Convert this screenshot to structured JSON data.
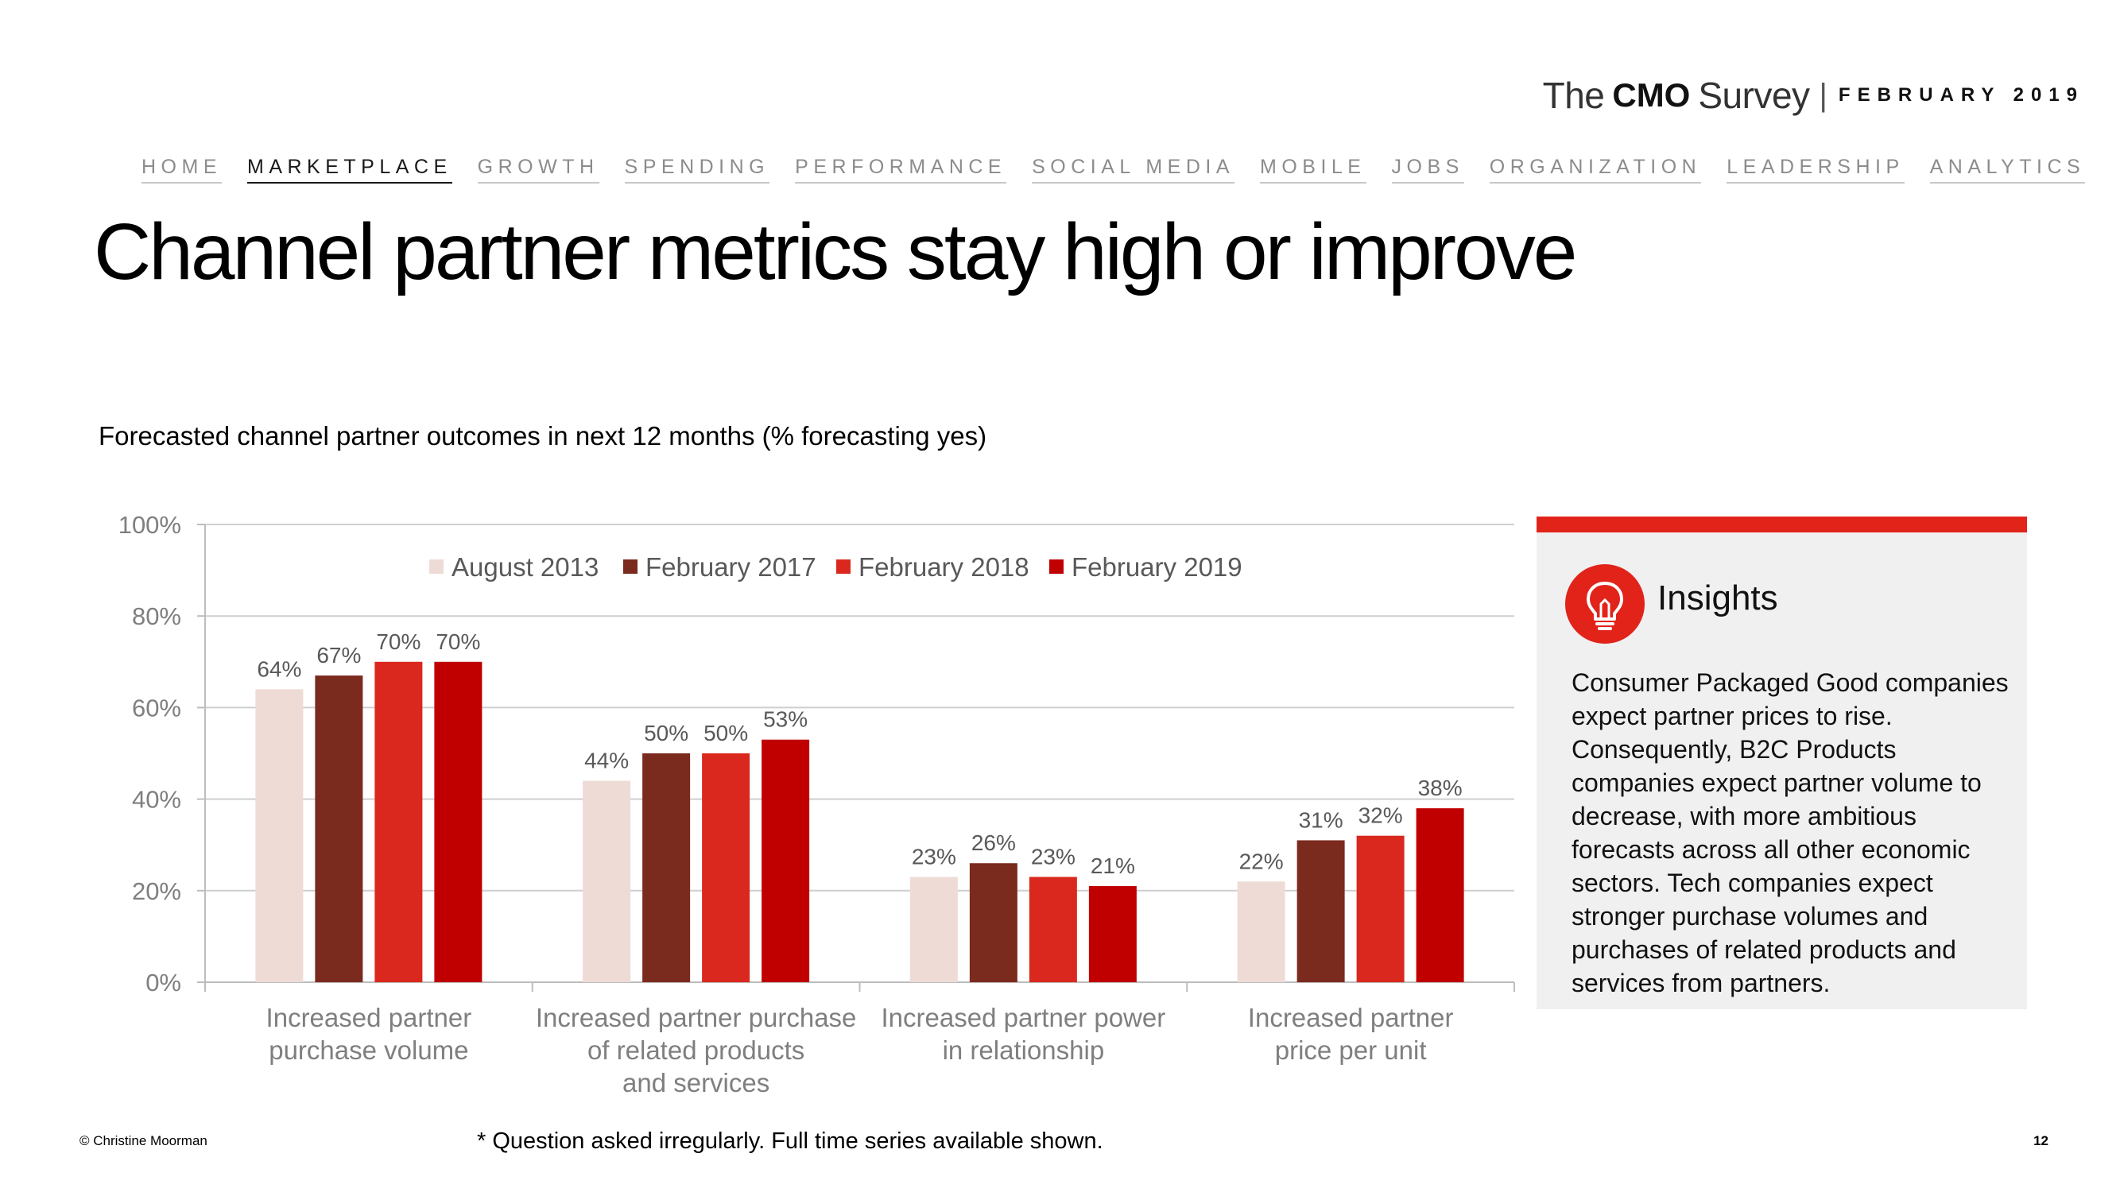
{
  "brand": {
    "the": "The",
    "cmo": "CMO",
    "survey": "Survey",
    "separator": "|",
    "date": "FEBRUARY 2019"
  },
  "nav": {
    "items": [
      "HOME",
      "MARKETPLACE",
      "GROWTH",
      "SPENDING",
      "PERFORMANCE",
      "SOCIAL MEDIA",
      "MOBILE",
      "JOBS",
      "ORGANIZATION",
      "LEADERSHIP",
      "ANALYTICS"
    ],
    "active": "MARKETPLACE"
  },
  "title": "Channel partner metrics stay high or improve",
  "subtitle": "Forecasted channel partner outcomes in next 12 months (% forecasting yes)",
  "chart_data": {
    "type": "bar",
    "title": "Forecasted channel partner outcomes in next 12 months (% forecasting yes)",
    "categories": [
      [
        "Increased partner",
        "purchase volume"
      ],
      [
        "Increased partner purchase",
        "of related products",
        "and services"
      ],
      [
        "Increased partner power",
        "in relationship"
      ],
      [
        "Increased partner",
        "price per unit"
      ]
    ],
    "series": [
      {
        "name": "August 2013",
        "color": "#efdbd6",
        "values": [
          64,
          44,
          23,
          22
        ]
      },
      {
        "name": "February 2017",
        "color": "#7b2a1e",
        "values": [
          67,
          50,
          26,
          31
        ]
      },
      {
        "name": "February 2018",
        "color": "#da281e",
        "values": [
          70,
          50,
          23,
          32
        ]
      },
      {
        "name": "February 2019",
        "color": "#c00000",
        "values": [
          70,
          53,
          21,
          38
        ]
      }
    ],
    "ylim": [
      0,
      100
    ],
    "yticks": [
      0,
      20,
      40,
      60,
      80,
      100
    ],
    "ytick_labels": [
      "0%",
      "20%",
      "40%",
      "60%",
      "80%",
      "100%"
    ],
    "value_suffix": "%",
    "grid": true,
    "legend": "top-center",
    "xlabel": "",
    "ylabel": ""
  },
  "insights": {
    "title": "Insights",
    "icon": "lightbulb-icon",
    "text": "Consumer Packaged Good companies expect partner prices to rise. Consequently, B2C Products companies expect partner volume to decrease, with more ambitious forecasts across all other economic sectors. Tech companies expect stronger purchase volumes and purchases of related products and services from partners."
  },
  "footer": {
    "copyright": "© Christine Moorman",
    "footnote": "* Question asked irregularly. Full time series available shown.",
    "page": "12"
  }
}
